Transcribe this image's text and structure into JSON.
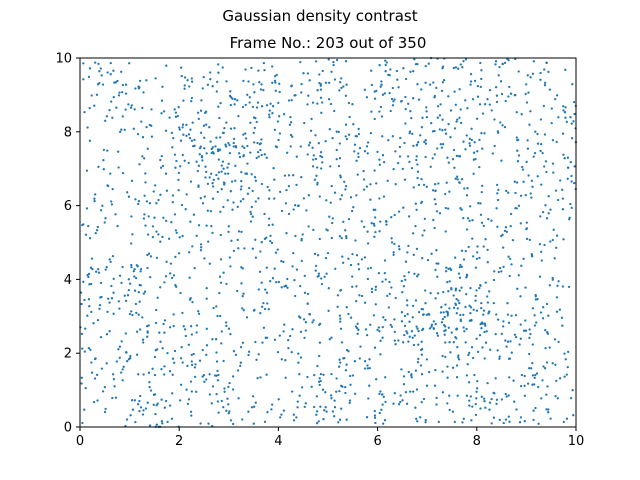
{
  "chart_data": {
    "type": "scatter",
    "suptitle": "Gaussian density contrast",
    "title": "Frame No.: 203 out of 350",
    "xlabel": "",
    "ylabel": "",
    "xlim": [
      0,
      10
    ],
    "ylim": [
      0,
      10
    ],
    "xticks": [
      "0",
      "2",
      "4",
      "6",
      "8",
      "10"
    ],
    "yticks": [
      "0",
      "2",
      "4",
      "6",
      "8",
      "10"
    ],
    "grid": false,
    "marker_color": "#1f77b4",
    "density_centers": [
      {
        "x": 2.85,
        "y": 7.35
      },
      {
        "x": 7.4,
        "y": 2.85
      }
    ],
    "point_count": 2200
  }
}
